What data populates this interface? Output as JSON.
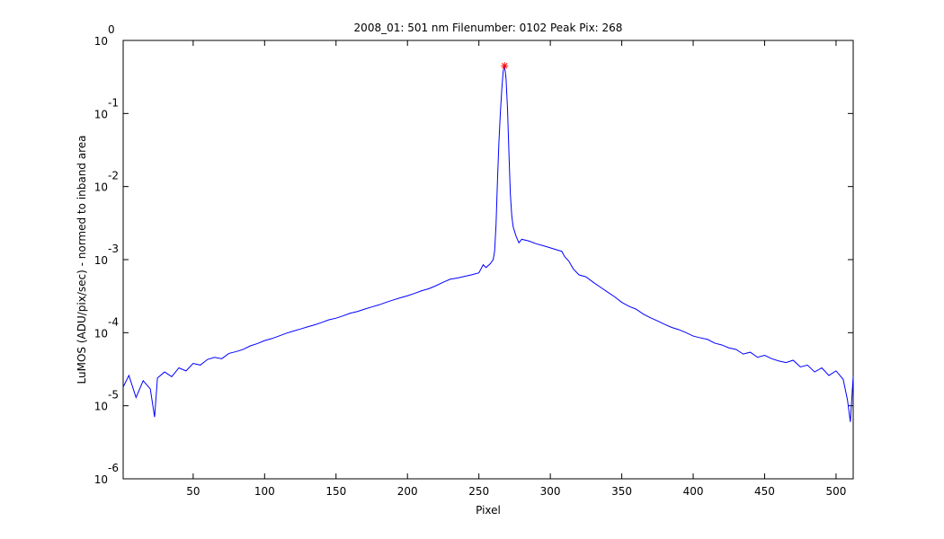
{
  "chart_data": {
    "type": "line",
    "title": "2008_01: 501 nm  Filenumber: 0102 Peak Pix: 268",
    "xlabel": "Pixel",
    "ylabel": "LuMOS (ADU/pix/sec) - normed to inband area",
    "log_y": true,
    "grid": false,
    "xlim": [
      1,
      512
    ],
    "ylim": [
      1e-06,
      1
    ],
    "xticks": [
      50,
      100,
      150,
      200,
      250,
      300,
      350,
      400,
      450,
      500
    ],
    "yticks": [
      {
        "value": 1,
        "label": "10",
        "exponent": "0"
      },
      {
        "value": 0.1,
        "label": "10",
        "exponent": "-1"
      },
      {
        "value": 0.01,
        "label": "10",
        "exponent": "-2"
      },
      {
        "value": 0.001,
        "label": "10",
        "exponent": "-3"
      },
      {
        "value": 0.0001,
        "label": "10",
        "exponent": "-4"
      },
      {
        "value": 1e-05,
        "label": "10",
        "exponent": "-5"
      },
      {
        "value": 1e-06,
        "label": "10",
        "exponent": "-6"
      }
    ],
    "x": [
      1,
      5,
      10,
      15,
      20,
      23,
      25,
      30,
      35,
      40,
      45,
      50,
      55,
      60,
      65,
      70,
      75,
      80,
      85,
      90,
      95,
      100,
      105,
      110,
      115,
      120,
      125,
      130,
      135,
      140,
      145,
      150,
      155,
      160,
      165,
      170,
      175,
      180,
      185,
      190,
      195,
      200,
      205,
      210,
      215,
      220,
      225,
      230,
      235,
      240,
      245,
      250,
      253,
      255,
      258,
      260,
      261,
      262,
      263,
      264,
      265,
      266,
      267,
      268,
      269,
      270,
      271,
      272,
      273,
      274,
      276,
      278,
      280,
      285,
      290,
      295,
      300,
      305,
      308,
      310,
      313,
      316,
      320,
      325,
      330,
      335,
      340,
      345,
      350,
      355,
      360,
      365,
      370,
      375,
      380,
      385,
      390,
      395,
      400,
      405,
      410,
      415,
      420,
      425,
      430,
      435,
      440,
      445,
      450,
      455,
      460,
      465,
      470,
      475,
      480,
      485,
      490,
      495,
      500,
      505,
      508,
      510,
      512
    ],
    "series": [
      {
        "color": "#0000ff",
        "values": [
          1.8e-05,
          2.6e-05,
          1.3e-05,
          2.2e-05,
          1.7e-05,
          7e-06,
          2.4e-05,
          2.9e-05,
          2.5e-05,
          3.3e-05,
          3e-05,
          3.8e-05,
          3.6e-05,
          4.3e-05,
          4.6e-05,
          4.4e-05,
          5.2e-05,
          5.5e-05,
          5.9e-05,
          6.6e-05,
          7.1e-05,
          7.8e-05,
          8.3e-05,
          9e-05,
          9.8e-05,
          0.000105,
          0.000112,
          0.00012,
          0.000128,
          0.000138,
          0.00015,
          0.000158,
          0.00017,
          0.000185,
          0.000195,
          0.00021,
          0.000225,
          0.00024,
          0.00026,
          0.00028,
          0.0003,
          0.00032,
          0.000345,
          0.000375,
          0.0004,
          0.00044,
          0.00049,
          0.00054,
          0.00056,
          0.00059,
          0.00062,
          0.00066,
          0.00085,
          0.00078,
          0.00088,
          0.001,
          0.0013,
          0.003,
          0.012,
          0.04,
          0.1,
          0.21,
          0.38,
          0.45,
          0.3,
          0.12,
          0.03,
          0.008,
          0.004,
          0.0028,
          0.0021,
          0.0017,
          0.0019,
          0.0018,
          0.00165,
          0.00155,
          0.00145,
          0.00135,
          0.0013,
          0.0011,
          0.00095,
          0.00075,
          0.00062,
          0.00058,
          0.00049,
          0.00042,
          0.00036,
          0.00031,
          0.00026,
          0.00023,
          0.00021,
          0.00018,
          0.00016,
          0.000145,
          0.00013,
          0.000118,
          0.00011,
          0.0001,
          9e-05,
          8.5e-05,
          8.1e-05,
          7.2e-05,
          6.8e-05,
          6.2e-05,
          5.9e-05,
          5.1e-05,
          5.4e-05,
          4.6e-05,
          4.9e-05,
          4.4e-05,
          4.1e-05,
          3.9e-05,
          4.2e-05,
          3.4e-05,
          3.6e-05,
          2.9e-05,
          3.3e-05,
          2.6e-05,
          3e-05,
          2.3e-05,
          1.2e-05,
          6e-06,
          2.5e-05
        ]
      }
    ],
    "markers": [
      {
        "x": 268,
        "y": 0.45,
        "color": "#ff0000"
      }
    ]
  }
}
